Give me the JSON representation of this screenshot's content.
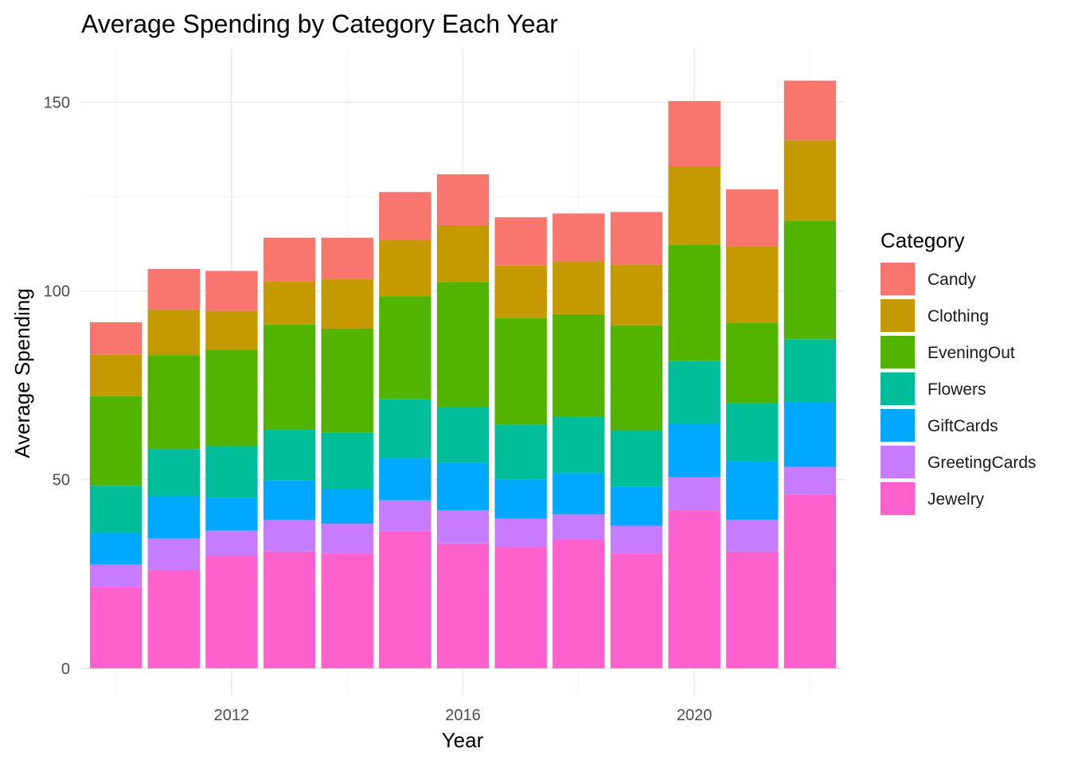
{
  "chart_data": {
    "type": "bar",
    "stacked": true,
    "title": "Average Spending by Category Each Year",
    "xlabel": "Year",
    "ylabel": "Average Spending",
    "x": [
      2010,
      2011,
      2012,
      2013,
      2014,
      2015,
      2016,
      2017,
      2018,
      2019,
      2020,
      2021,
      2022
    ],
    "x_ticks": [
      "2012",
      "2016",
      "2020"
    ],
    "y_ticks": [
      "0",
      "50",
      "100",
      "150"
    ],
    "ylim": [
      -7,
      164
    ],
    "xlim": [
      2009.4,
      2022.6
    ],
    "grid": true,
    "legend": {
      "title": "Category",
      "position": "right"
    },
    "series": [
      {
        "name": "Jewelry",
        "color": "#FF61CC",
        "values": [
          21.5,
          26.0,
          29.8,
          31.0,
          30.5,
          36.3,
          33.1,
          32.2,
          34.1,
          30.4,
          41.9,
          31.0,
          46.0
        ]
      },
      {
        "name": "GreetingCards",
        "color": "#C77CFF",
        "values": [
          6.0,
          8.4,
          6.7,
          8.3,
          7.8,
          8.2,
          8.8,
          7.5,
          6.7,
          7.4,
          8.7,
          8.4,
          7.4
        ]
      },
      {
        "name": "GiftCards",
        "color": "#00A9FF",
        "values": [
          8.4,
          11.2,
          8.6,
          10.5,
          9.2,
          11.1,
          12.5,
          10.4,
          10.9,
          10.3,
          14.2,
          15.5,
          17.2
        ]
      },
      {
        "name": "Flowers",
        "color": "#00BE9A",
        "values": [
          12.5,
          12.5,
          13.8,
          13.4,
          14.9,
          15.8,
          14.7,
          14.5,
          15.0,
          15.0,
          16.6,
          15.4,
          16.6
        ]
      },
      {
        "name": "EveningOut",
        "color": "#53B400",
        "values": [
          23.7,
          24.9,
          25.4,
          27.9,
          27.6,
          27.2,
          33.3,
          28.2,
          27.1,
          27.8,
          30.9,
          21.3,
          31.4
        ]
      },
      {
        "name": "Clothing",
        "color": "#C49A00",
        "values": [
          11.0,
          12.1,
          10.4,
          11.4,
          13.2,
          14.8,
          15.0,
          13.9,
          14.0,
          16.1,
          20.6,
          20.2,
          21.3
        ]
      },
      {
        "name": "Candy",
        "color": "#F8766D",
        "values": [
          8.6,
          10.7,
          10.6,
          11.6,
          10.9,
          12.8,
          13.5,
          12.8,
          12.7,
          13.9,
          17.4,
          15.1,
          15.8
        ]
      }
    ]
  }
}
